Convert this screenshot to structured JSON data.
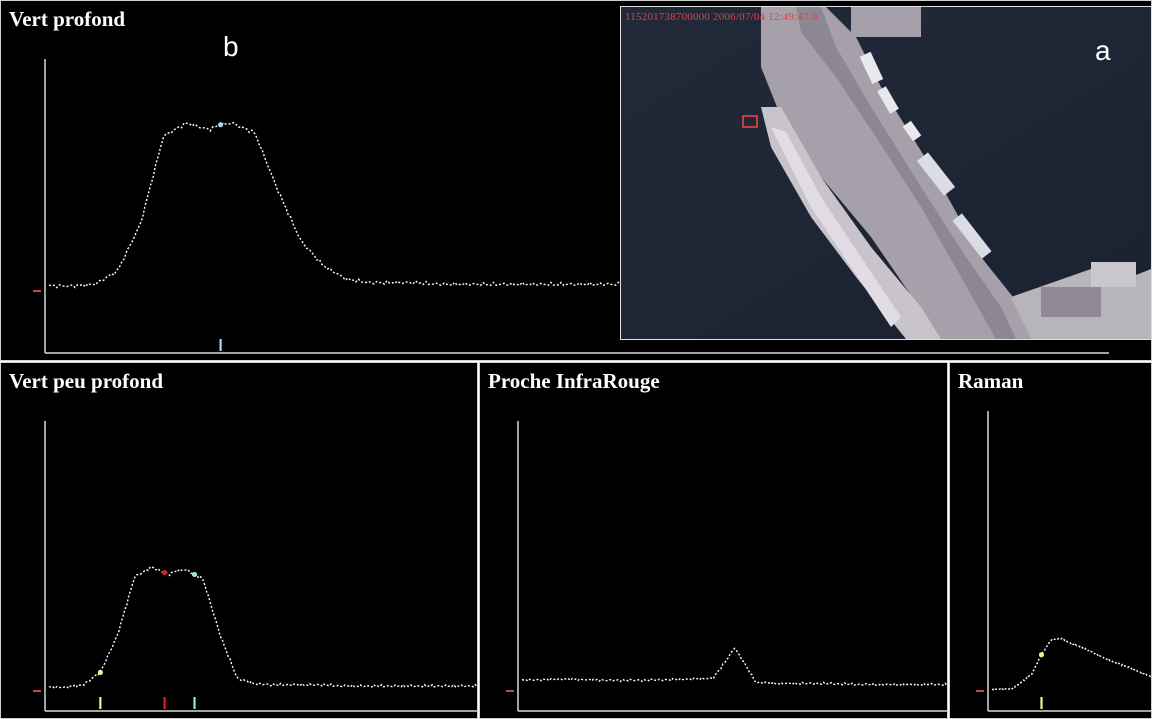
{
  "figure": {
    "label_a": "a",
    "label_b": "b"
  },
  "photo": {
    "timestamp": "115201738700000 2006/07/04 12:49:47.0",
    "marker_color": "#ff4040"
  },
  "colors": {
    "background": "#000000",
    "trace": "#ffffff",
    "axis": "#d8d8d8",
    "marker_yellow": "#f2f28a",
    "marker_red": "#e02020",
    "marker_cyan": "#9fe0e8",
    "baseline_tick": "#ff6060"
  },
  "chart_data": [
    {
      "type": "line",
      "title": "Vert profond",
      "x": [
        0,
        4,
        8,
        12,
        16,
        20,
        24,
        28,
        30,
        32,
        36,
        40,
        44,
        48,
        52,
        56,
        60,
        64,
        68,
        72,
        76,
        80,
        84,
        88,
        92,
        96,
        100
      ],
      "series": [
        {
          "values": [
            0.03,
            0.03,
            0.04,
            0.12,
            0.4,
            0.92,
            1.0,
            0.96,
            0.99,
            1.0,
            0.94,
            0.6,
            0.3,
            0.15,
            0.07,
            0.05,
            0.05,
            0.05,
            0.04,
            0.04,
            0.04,
            0.04,
            0.04,
            0.04,
            0.04,
            0.04,
            0.04
          ]
        }
      ],
      "markers": [
        {
          "x": 30,
          "color": "cyan"
        }
      ]
    },
    {
      "type": "line",
      "title": "Vert peu profond",
      "x": [
        0,
        4,
        8,
        12,
        16,
        20,
        24,
        28,
        30,
        32,
        36,
        40,
        44,
        48,
        52,
        56,
        60,
        64,
        68,
        72,
        76,
        80,
        84,
        88,
        92,
        96,
        100
      ],
      "series": [
        {
          "values": [
            0.03,
            0.03,
            0.05,
            0.15,
            0.45,
            0.92,
            1.0,
            0.94,
            0.97,
            0.98,
            0.9,
            0.45,
            0.1,
            0.06,
            0.05,
            0.05,
            0.05,
            0.05,
            0.04,
            0.04,
            0.04,
            0.04,
            0.04,
            0.04,
            0.04,
            0.04,
            0.04
          ]
        }
      ],
      "markers": [
        {
          "x": 12,
          "color": "yellow"
        },
        {
          "x": 27,
          "color": "red"
        },
        {
          "x": 34,
          "color": "cyan"
        }
      ]
    },
    {
      "type": "line",
      "title": "Proche InfraRouge",
      "x": [
        0,
        10,
        20,
        30,
        40,
        45,
        48,
        50,
        52,
        55,
        60,
        70,
        80,
        90,
        100
      ],
      "series": [
        {
          "values": [
            0.1,
            0.11,
            0.1,
            0.1,
            0.11,
            0.12,
            0.28,
            0.4,
            0.28,
            0.08,
            0.07,
            0.07,
            0.06,
            0.06,
            0.06
          ]
        }
      ],
      "markers": []
    },
    {
      "type": "line",
      "title": "Raman",
      "x": [
        0,
        10,
        20,
        25,
        30,
        35,
        40,
        50,
        60,
        70,
        80,
        90,
        100
      ],
      "series": [
        {
          "values": [
            0.02,
            0.03,
            0.25,
            0.55,
            0.78,
            0.8,
            0.72,
            0.6,
            0.45,
            0.35,
            0.22,
            0.1,
            0.08
          ]
        }
      ],
      "markers": [
        {
          "x": 25,
          "color": "yellow"
        }
      ]
    }
  ]
}
